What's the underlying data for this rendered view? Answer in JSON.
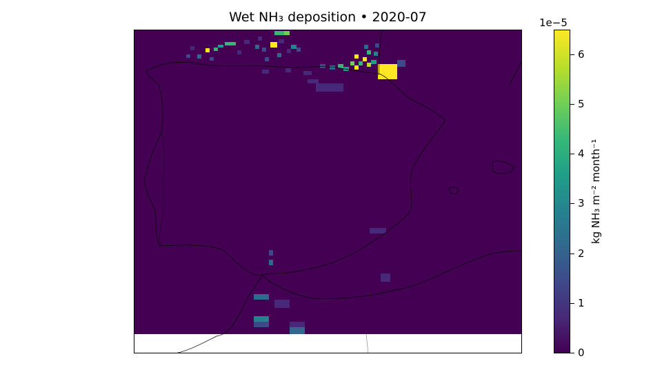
{
  "title": "Wet NH₃ deposition  •  2020-07",
  "colorbar": {
    "label": "kg NH₃ m⁻² month⁻¹",
    "offset_text": "1e−5",
    "ticks": [
      "0",
      "1",
      "2",
      "3",
      "4",
      "5",
      "6"
    ],
    "tick_values": [
      0,
      1,
      2,
      3,
      4,
      5,
      6
    ],
    "max": 6.5,
    "colormap": "viridis",
    "colors": {
      "min": "#440154",
      "max": "#fde725"
    }
  },
  "map": {
    "region": "Iberian Peninsula",
    "background_value_color": "#440154",
    "hotspots_note_values_1e-5": {
      "pyrenees_northeast_box": 6.5,
      "bay_of_biscay_west": 6.5,
      "gironde_cluster": 6.5,
      "scattered_north": 4.0,
      "gibraltar_strait_cells": 1.5,
      "morocco_cells": 2.0
    }
  }
}
